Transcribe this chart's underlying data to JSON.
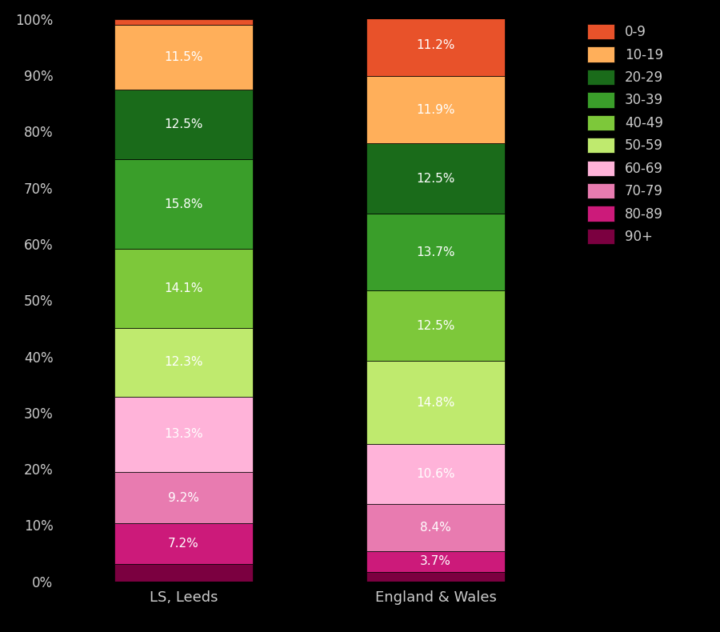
{
  "categories": [
    "LS, Leeds",
    "England & Wales"
  ],
  "age_groups_top_to_bottom": [
    "0-9",
    "10-19",
    "20-29",
    "30-39",
    "40-49",
    "50-59",
    "60-69",
    "70-79",
    "80-89",
    "90+"
  ],
  "colors": {
    "0-9": "#E8522A",
    "10-19": "#FFAF5A",
    "20-29": "#1A6B1A",
    "30-39": "#3A9E2A",
    "40-49": "#7DC83A",
    "50-59": "#BFEA6E",
    "60-69": "#FFB3D9",
    "70-79": "#E87BB0",
    "80-89": "#CC1A7A",
    "90+": "#7B0040"
  },
  "values": {
    "LS, Leeds": {
      "90+": 3.1,
      "80-89": 7.2,
      "70-79": 9.2,
      "60-69": 13.3,
      "50-59": 12.3,
      "40-49": 14.1,
      "30-39": 15.8,
      "20-29": 12.5,
      "10-19": 11.5,
      "0-9": 1.0
    },
    "England & Wales": {
      "90+": 1.7,
      "80-89": 3.7,
      "70-79": 8.4,
      "60-69": 10.6,
      "50-59": 14.8,
      "40-49": 12.5,
      "30-39": 13.7,
      "20-29": 12.5,
      "10-19": 11.9,
      "0-9": 11.2
    }
  },
  "labels": {
    "LS, Leeds": {
      "90+": "",
      "80-89": "7.2%",
      "70-79": "9.2%",
      "60-69": "13.3%",
      "50-59": "12.3%",
      "40-49": "14.1%",
      "30-39": "15.8%",
      "20-29": "12.5%",
      "10-19": "11.5%",
      "0-9": ""
    },
    "England & Wales": {
      "90+": "",
      "80-89": "3.7%",
      "70-79": "8.4%",
      "60-69": "10.6%",
      "50-59": "14.8%",
      "40-49": "12.5%",
      "30-39": "13.7%",
      "20-29": "12.5%",
      "10-19": "11.9%",
      "0-9": "11.2%"
    }
  },
  "background_color": "#000000",
  "bar_text_color": "#FFFFFF",
  "tick_color": "#CCCCCC",
  "legend_text_color": "#CCCCCC",
  "figure_width": 9.0,
  "figure_height": 7.9
}
